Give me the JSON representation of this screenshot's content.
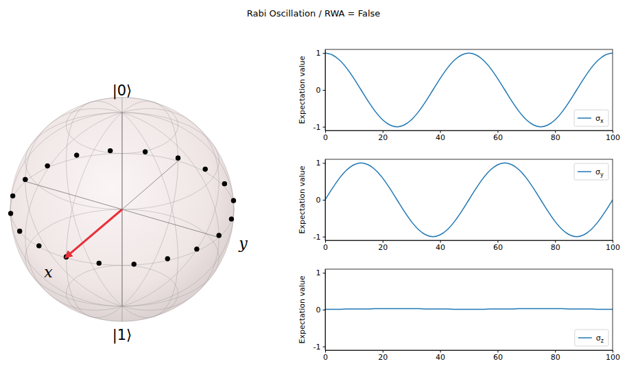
{
  "title": "Rabi Oscillation / RWA = False",
  "chart_data": [
    {
      "type": "bloch",
      "xlabel": "x",
      "ylabel": "y",
      "zlabels": [
        "|0⟩",
        "|1⟩"
      ],
      "marker": "circle",
      "color": "#000000"
    },
    {
      "type": "line",
      "ylabel": "Expectation value",
      "x": [
        0,
        2.5,
        5,
        7.5,
        10,
        12.5,
        15,
        17.5,
        20,
        22.5,
        25,
        27.5,
        30,
        32.5,
        35,
        37.5,
        40,
        42.5,
        45,
        47.5,
        50,
        52.5,
        55,
        57.5,
        60,
        62.5,
        65,
        67.5,
        70,
        72.5,
        75,
        77.5,
        80,
        82.5,
        85,
        87.5,
        90,
        92.5,
        95,
        97.5,
        100
      ],
      "series": [
        {
          "name": "σx",
          "color": "#1f77b4",
          "values": [
            1,
            0.95,
            0.81,
            0.59,
            0.31,
            0,
            -0.31,
            -0.59,
            -0.81,
            -0.95,
            -1,
            -0.95,
            -0.81,
            -0.59,
            -0.31,
            0,
            0.31,
            0.59,
            0.81,
            0.95,
            1,
            0.95,
            0.81,
            0.59,
            0.31,
            0,
            -0.31,
            -0.59,
            -0.81,
            -0.95,
            -1,
            -0.95,
            -0.81,
            -0.59,
            -0.31,
            0,
            0.31,
            0.59,
            0.81,
            0.95,
            1
          ]
        }
      ],
      "xlim": [
        0,
        100
      ],
      "xticks": [
        0,
        20,
        40,
        60,
        80,
        100
      ],
      "ylim": [
        -1.1,
        1.1
      ],
      "yticks": [
        -1,
        0,
        1
      ],
      "grid": false,
      "legend": "lower right"
    },
    {
      "type": "line",
      "ylabel": "Expectation value",
      "x": [
        0,
        2.5,
        5,
        7.5,
        10,
        12.5,
        15,
        17.5,
        20,
        22.5,
        25,
        27.5,
        30,
        32.5,
        35,
        37.5,
        40,
        42.5,
        45,
        47.5,
        50,
        52.5,
        55,
        57.5,
        60,
        62.5,
        65,
        67.5,
        70,
        72.5,
        75,
        77.5,
        80,
        82.5,
        85,
        87.5,
        90,
        92.5,
        95,
        97.5,
        100
      ],
      "series": [
        {
          "name": "σy",
          "color": "#1f77b4",
          "values": [
            0,
            0.31,
            0.59,
            0.81,
            0.95,
            1,
            0.95,
            0.81,
            0.59,
            0.31,
            0,
            -0.31,
            -0.59,
            -0.81,
            -0.95,
            -1,
            -0.95,
            -0.81,
            -0.59,
            -0.31,
            0,
            0.31,
            0.59,
            0.81,
            0.95,
            1,
            0.95,
            0.81,
            0.59,
            0.31,
            0,
            -0.31,
            -0.59,
            -0.81,
            -0.95,
            -1,
            -0.95,
            -0.81,
            -0.59,
            -0.31,
            0
          ]
        }
      ],
      "xlim": [
        0,
        100
      ],
      "xticks": [
        0,
        20,
        40,
        60,
        80,
        100
      ],
      "ylim": [
        -1.1,
        1.1
      ],
      "yticks": [
        -1,
        0,
        1
      ],
      "grid": false,
      "legend": "upper right"
    },
    {
      "type": "line",
      "ylabel": "Expectation value",
      "x": [
        0,
        2.5,
        5,
        7.5,
        10,
        12.5,
        15,
        17.5,
        20,
        22.5,
        25,
        27.5,
        30,
        32.5,
        35,
        37.5,
        40,
        42.5,
        45,
        47.5,
        50,
        52.5,
        55,
        57.5,
        60,
        62.5,
        65,
        67.5,
        70,
        72.5,
        75,
        77.5,
        80,
        82.5,
        85,
        87.5,
        90,
        92.5,
        95,
        97.5,
        100
      ],
      "series": [
        {
          "name": "σz",
          "color": "#1f77b4",
          "values": [
            0.01,
            0.01,
            0.01,
            0.02,
            0.02,
            0.02,
            0.02,
            0.03,
            0.03,
            0.03,
            0.03,
            0.03,
            0.03,
            0.03,
            0.02,
            0.02,
            0.02,
            0.02,
            0.01,
            0.01,
            0.01,
            0.01,
            0.01,
            0.02,
            0.02,
            0.02,
            0.02,
            0.03,
            0.03,
            0.03,
            0.03,
            0.03,
            0.03,
            0.03,
            0.02,
            0.02,
            0.02,
            0.02,
            0.01,
            0.01,
            0.01
          ]
        }
      ],
      "xlim": [
        0,
        100
      ],
      "xticks": [
        0,
        20,
        40,
        60,
        80,
        100
      ],
      "ylim": [
        -1.1,
        1.1
      ],
      "yticks": [
        -1,
        0,
        1
      ],
      "grid": false,
      "legend": "lower right"
    }
  ]
}
